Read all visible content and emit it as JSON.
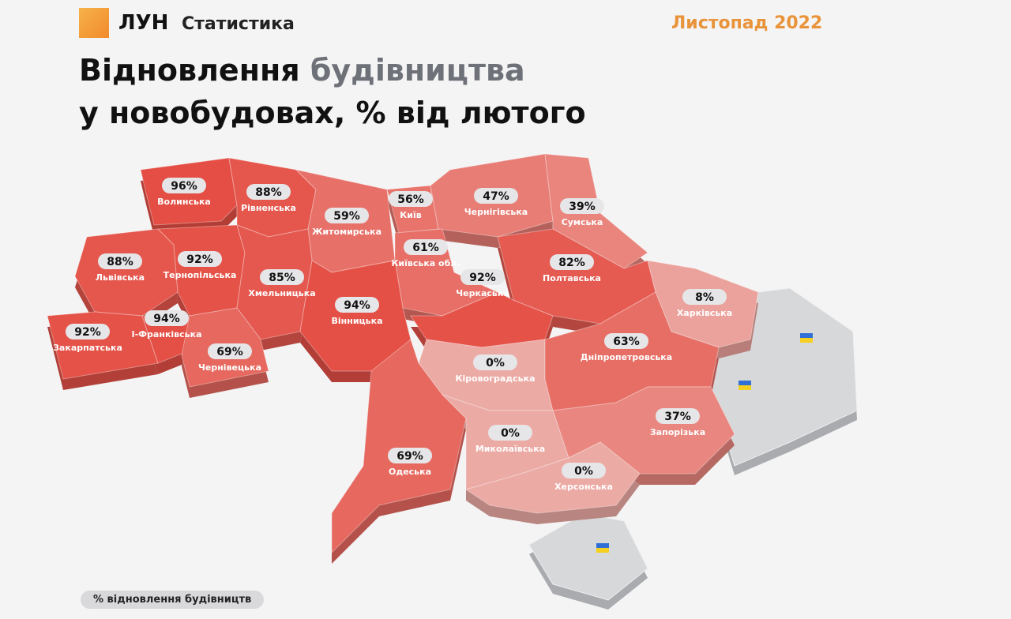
{
  "header": {
    "brand": "ЛУН",
    "brand_sub": "Статистика",
    "date": "Листопад 2022",
    "title_part1": "Відновлення",
    "title_part2": "будівництва",
    "title_line2": "у новобудовах, % від лютого"
  },
  "legend": "% відновлення будівництв",
  "regions": [
    {
      "name": "Волинська",
      "value": 96,
      "value_label": "96%"
    },
    {
      "name": "Рівненська",
      "value": 88,
      "value_label": "88%"
    },
    {
      "name": "Житомирська",
      "value": 59,
      "value_label": "59%"
    },
    {
      "name": "Київ",
      "value": 56,
      "value_label": "56%"
    },
    {
      "name": "Чернігівська",
      "value": 47,
      "value_label": "47%"
    },
    {
      "name": "Сумська",
      "value": 39,
      "value_label": "39%"
    },
    {
      "name": "Київська обл.",
      "value": 61,
      "value_label": "61%"
    },
    {
      "name": "Львівська",
      "value": 88,
      "value_label": "88%"
    },
    {
      "name": "Тернопільська",
      "value": 92,
      "value_label": "92%"
    },
    {
      "name": "Хмельницька",
      "value": 85,
      "value_label": "85%"
    },
    {
      "name": "Вінницька",
      "value": 94,
      "value_label": "94%"
    },
    {
      "name": "Черкаська",
      "value": 92,
      "value_label": "92%"
    },
    {
      "name": "Полтавська",
      "value": 82,
      "value_label": "82%"
    },
    {
      "name": "Харківська",
      "value": 8,
      "value_label": "8%"
    },
    {
      "name": "Закарпатська",
      "value": 92,
      "value_label": "92%"
    },
    {
      "name": "І-Франківська",
      "value": 94,
      "value_label": "94%"
    },
    {
      "name": "Чернівецька",
      "value": 69,
      "value_label": "69%"
    },
    {
      "name": "Кіровоградська",
      "value": 0,
      "value_label": "0%"
    },
    {
      "name": "Дніпропетровська",
      "value": 63,
      "value_label": "63%"
    },
    {
      "name": "Запорізька",
      "value": 37,
      "value_label": "37%"
    },
    {
      "name": "Миколаївська",
      "value": 0,
      "value_label": "0%"
    },
    {
      "name": "Одеська",
      "value": 69,
      "value_label": "69%"
    },
    {
      "name": "Херсонська",
      "value": 0,
      "value_label": "0%"
    }
  ]
}
